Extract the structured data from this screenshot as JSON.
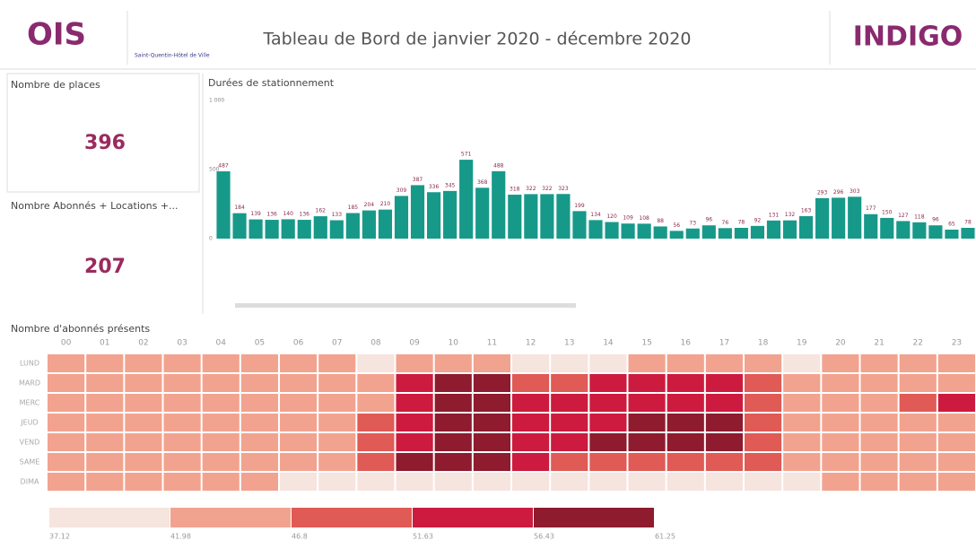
{
  "header": {
    "logo_left": "OIS",
    "site": "Saint-Quentin-Hôtel de Ville",
    "title": "Tableau de Bord de janvier 2020 - décembre 2020",
    "logo_right": "INDIGO"
  },
  "kpis": [
    {
      "label": "Nombre de places",
      "value": 396
    },
    {
      "label": "Nombre Abonnés + Locations +...",
      "value": 207
    }
  ],
  "chart_data": [
    {
      "type": "bar",
      "title": "Durées de stationnement",
      "color": "#17998a",
      "categories": [
        null,
        null,
        null,
        null,
        null,
        null,
        null,
        null,
        null,
        null,
        null,
        null,
        null,
        null,
        null,
        null,
        null,
        null,
        null,
        null,
        null,
        null,
        null,
        null,
        null,
        null,
        null,
        null,
        null,
        null,
        null,
        null,
        null,
        null,
        null,
        null,
        null,
        null,
        null,
        null,
        null,
        null,
        null,
        null,
        null,
        null,
        null
      ],
      "values": [
        487,
        184,
        139,
        136,
        140,
        136,
        162,
        133,
        185,
        204,
        210,
        309,
        387,
        336,
        345,
        571,
        368,
        488,
        318,
        322,
        322,
        323,
        199,
        134,
        120,
        109,
        108,
        88,
        56,
        73,
        96,
        76,
        78,
        92,
        131,
        132,
        163,
        293,
        296,
        303,
        177,
        150,
        127,
        118,
        96,
        65,
        78
      ],
      "ylim": [
        0,
        1000
      ],
      "yticks": [
        0,
        500,
        {
          "value": 1000,
          "label": "1 000"
        }
      ]
    },
    {
      "type": "heatmap",
      "title": "Nombre d'abonnés présents",
      "x": [
        "00",
        "01",
        "02",
        "03",
        "04",
        "05",
        "06",
        "07",
        "08",
        "09",
        "10",
        "11",
        "12",
        "13",
        "14",
        "15",
        "16",
        "17",
        "18",
        "19",
        "20",
        "21",
        "22",
        "23"
      ],
      "y": [
        "LUND",
        "MARD",
        "MERC",
        "JEUD",
        "VEND",
        "SAME",
        "DIMA"
      ],
      "values": [
        [
          44.4,
          44.4,
          44.4,
          44.4,
          44.4,
          44.4,
          44.4,
          44.4,
          39.5,
          44.4,
          44.4,
          44.4,
          39.5,
          39.5,
          39.5,
          44.4,
          44.4,
          44.4,
          44.4,
          39.5,
          44.4,
          44.4,
          44.4,
          44.4
        ],
        [
          44.4,
          44.4,
          44.4,
          44.4,
          44.4,
          44.4,
          44.4,
          44.4,
          44.4,
          54,
          58.8,
          58.8,
          49.2,
          49.2,
          54,
          54,
          54,
          54,
          49.2,
          44.4,
          44.4,
          44.4,
          44.4,
          44.4
        ],
        [
          44.4,
          44.4,
          44.4,
          44.4,
          44.4,
          44.4,
          44.4,
          44.4,
          44.4,
          54,
          58.8,
          58.8,
          54,
          54,
          54,
          54,
          54,
          54,
          49.2,
          44.4,
          44.4,
          44.4,
          49.2,
          54
        ],
        [
          44.4,
          44.4,
          44.4,
          44.4,
          44.4,
          44.4,
          44.4,
          44.4,
          49.2,
          54,
          58.8,
          58.8,
          54,
          54,
          54,
          58.8,
          58.8,
          58.8,
          49.2,
          44.4,
          44.4,
          44.4,
          44.4,
          44.4
        ],
        [
          44.4,
          44.4,
          44.4,
          44.4,
          44.4,
          44.4,
          44.4,
          44.4,
          49.2,
          54,
          58.8,
          58.8,
          54,
          54,
          58.8,
          58.8,
          58.8,
          58.8,
          49.2,
          44.4,
          44.4,
          44.4,
          44.4,
          44.4
        ],
        [
          44.4,
          44.4,
          44.4,
          44.4,
          44.4,
          44.4,
          44.4,
          44.4,
          49.2,
          58.8,
          58.8,
          58.8,
          54,
          49.2,
          49.2,
          49.2,
          49.2,
          49.2,
          49.2,
          44.4,
          44.4,
          44.4,
          44.4,
          44.4
        ],
        [
          44.4,
          44.4,
          44.4,
          44.4,
          44.4,
          44.4,
          39.5,
          39.5,
          39.5,
          39.5,
          39.5,
          39.5,
          39.5,
          39.5,
          39.5,
          39.5,
          39.5,
          39.5,
          39.5,
          39.5,
          44.4,
          44.4,
          44.4,
          44.4
        ]
      ],
      "bins": [
        37.12,
        41.98,
        46.8,
        51.63,
        56.43,
        61.25
      ],
      "colors": [
        "#f6e4df",
        "#f2a38f",
        "#e05a56",
        "#cc1b3e",
        "#8e1b2e"
      ]
    }
  ]
}
